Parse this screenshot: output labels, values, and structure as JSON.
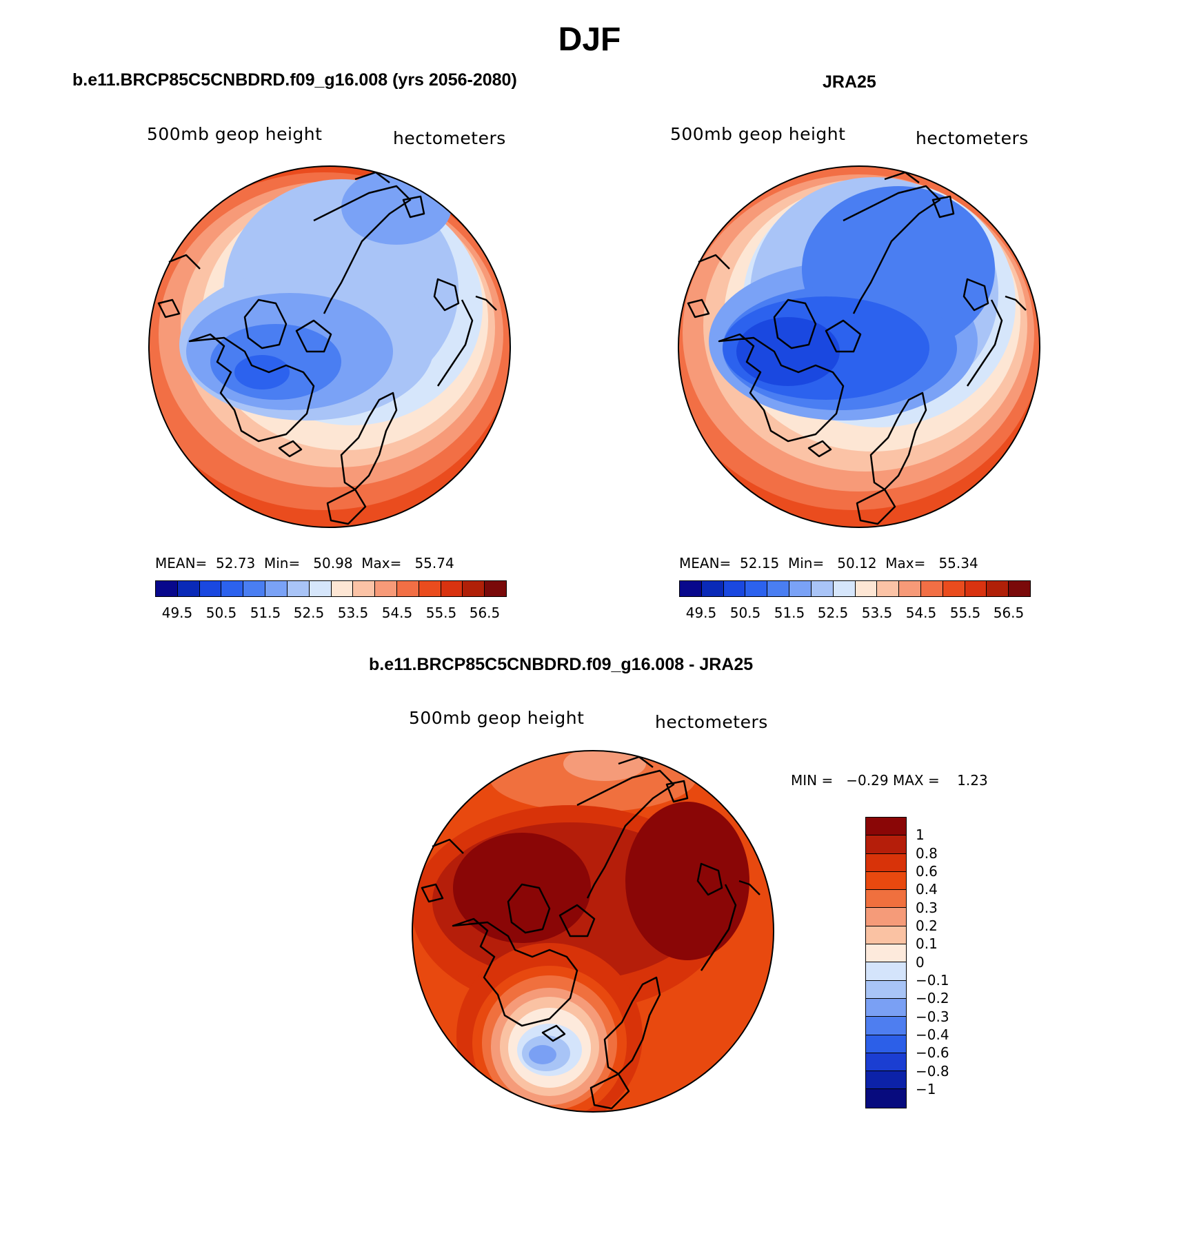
{
  "title": "DJF",
  "panels": {
    "model": {
      "title": "b.e11.BRCP85C5CNBDRD.f09_g16.008 (yrs 2056-2080)",
      "variable": "500mb geop height",
      "units": "hectometers",
      "stats": "MEAN=  52.73  Min=   50.98  Max=   55.74"
    },
    "obs": {
      "title": "JRA25",
      "variable": "500mb geop height",
      "units": "hectometers",
      "stats": "MEAN=  52.15  Min=   50.12  Max=   55.34"
    },
    "diff": {
      "title": "b.e11.BRCP85C5CNBDRD.f09_g16.008 - JRA25",
      "variable": "500mb geop height",
      "units": "hectometers",
      "stats": "MIN =   −0.29 MAX =    1.23"
    }
  },
  "colorbar_main": {
    "labels": [
      "49.5",
      "50.5",
      "51.5",
      "52.5",
      "53.5",
      "54.5",
      "55.5",
      "56.5"
    ],
    "colors": [
      "#08088c",
      "#0a2ab8",
      "#1a48e0",
      "#2c62ee",
      "#4a7ef2",
      "#7aa2f6",
      "#a9c4f7",
      "#d6e6fb",
      "#fde6d4",
      "#fbc3a6",
      "#f79a78",
      "#f26f45",
      "#ea4c1e",
      "#d93310",
      "#b02008",
      "#7a0a0a"
    ]
  },
  "colorbar_diff": {
    "labels": [
      "1",
      "0.8",
      "0.6",
      "0.4",
      "0.3",
      "0.2",
      "0.1",
      "0",
      "−0.1",
      "−0.2",
      "−0.3",
      "−0.4",
      "−0.6",
      "−0.8",
      "−1"
    ],
    "colors": [
      "#8a0606",
      "#b51e0a",
      "#d83309",
      "#e8490f",
      "#f0703e",
      "#f59b79",
      "#fac2a3",
      "#fdeadc",
      "#d4e4fb",
      "#a8c4f6",
      "#7aa0f4",
      "#4e7ef0",
      "#2c5fe8",
      "#1b3ed2",
      "#0c22a8",
      "#070b7e"
    ]
  }
}
